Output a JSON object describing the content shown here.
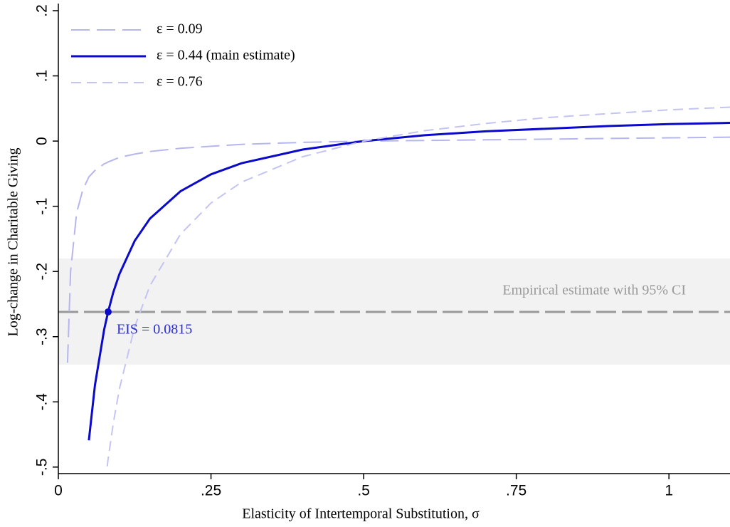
{
  "chart_data": {
    "type": "line",
    "xlabel": "Elasticity of Intertemporal Substitution,  σ",
    "ylabel": "Log-change in Charitable Giving",
    "x": [
      0.015,
      0.02,
      0.03,
      0.04,
      0.05,
      0.06,
      0.075,
      0.08,
      0.0815,
      0.09,
      0.1,
      0.125,
      0.15,
      0.2,
      0.25,
      0.3,
      0.4,
      0.5,
      0.6,
      0.7,
      0.8,
      0.9,
      1.0,
      1.1
    ],
    "series": [
      {
        "name": "ε = 0.09",
        "color": "#b6b6ee",
        "style": "longdash",
        "values": [
          -0.34,
          -0.2,
          -0.11,
          -0.075,
          -0.055,
          -0.045,
          -0.035,
          -0.033,
          -0.032,
          -0.029,
          -0.025,
          -0.02,
          -0.016,
          -0.011,
          -0.008,
          -0.005,
          -0.002,
          0,
          0.001,
          0.002,
          0.003,
          0.004,
          0.005,
          0.006
        ]
      },
      {
        "name": "ε = 0.44 (main estimate)",
        "color": "#0a0ac8",
        "style": "solid",
        "values": [
          null,
          null,
          null,
          null,
          -0.459,
          -0.374,
          -0.289,
          -0.268,
          -0.262,
          -0.232,
          -0.204,
          -0.153,
          -0.119,
          -0.077,
          -0.051,
          -0.034,
          -0.013,
          0,
          0.009,
          0.015,
          0.019,
          0.023,
          0.026,
          0.028
        ]
      },
      {
        "name": "ε = 0.76",
        "color": "#c4c4f2",
        "style": "dash",
        "values": [
          null,
          null,
          null,
          null,
          null,
          null,
          null,
          -0.499,
          -0.488,
          -0.433,
          -0.38,
          -0.285,
          -0.222,
          -0.143,
          -0.095,
          -0.063,
          -0.024,
          0,
          0.016,
          0.027,
          0.036,
          0.042,
          0.048,
          0.052
        ]
      }
    ],
    "estimate": {
      "label": "Empirical estimate with 95% CI",
      "value": -0.262,
      "ci": [
        -0.343,
        -0.18
      ],
      "color": "#999999",
      "band_color": "#f2f2f2"
    },
    "annotation": {
      "text": "EIS = 0.0815",
      "x": 0.0815,
      "y": -0.262,
      "color": "#2b2bd8"
    },
    "xlim": [
      0,
      1.1
    ],
    "ylim": [
      -0.51,
      0.2
    ],
    "xticks": [
      0,
      {
        "value": 0.25,
        "label": ".25"
      },
      {
        "value": 0.5,
        "label": ".5"
      },
      {
        "value": 0.75,
        "label": ".75"
      },
      1
    ],
    "yticks": [
      {
        "value": 0.2,
        "label": ".2"
      },
      {
        "value": 0.1,
        "label": ".1"
      },
      0,
      {
        "value": -0.1,
        "label": "-.1"
      },
      {
        "value": -0.2,
        "label": "-.2"
      },
      {
        "value": -0.3,
        "label": "-.3"
      },
      {
        "value": -0.4,
        "label": "-.4"
      },
      {
        "value": -0.5,
        "label": "-.5"
      }
    ],
    "legend": "top-left"
  }
}
